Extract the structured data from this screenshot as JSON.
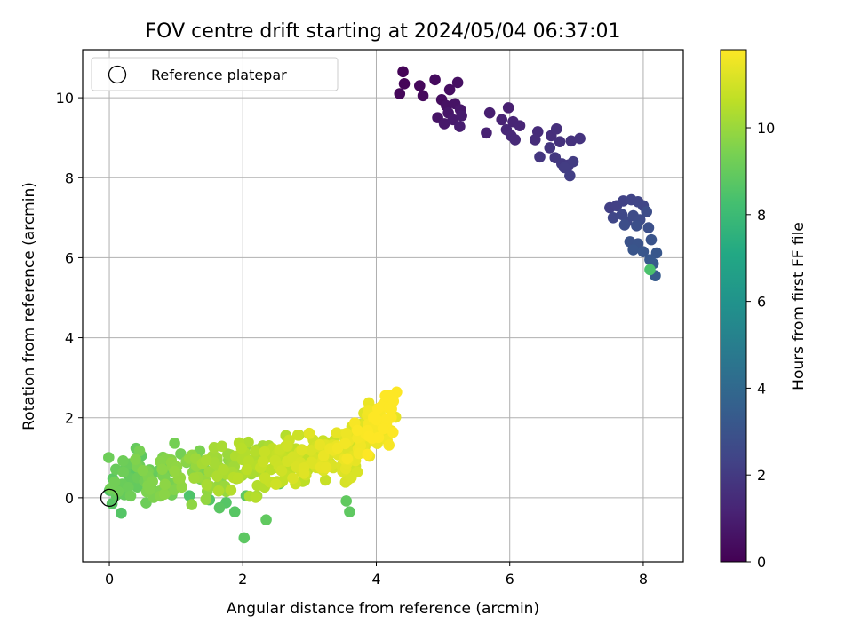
{
  "chart_data": {
    "type": "scatter",
    "title": "FOV centre drift starting at 2024/05/04 06:37:01",
    "xlabel": "Angular distance from reference (arcmin)",
    "ylabel": "Rotation from reference (arcmin)",
    "xlim": [
      -0.4,
      8.6
    ],
    "ylim": [
      -1.6,
      11.2
    ],
    "xticks": [
      0,
      2,
      4,
      6,
      8
    ],
    "yticks": [
      0,
      2,
      4,
      6,
      8,
      10
    ],
    "grid": true,
    "legend": {
      "placement": "top-left",
      "entries": [
        "Reference platepar"
      ]
    },
    "reference_point": {
      "x": 0,
      "y": 0
    },
    "colorbar": {
      "label": "Hours from first FF file",
      "range": [
        0,
        11.8
      ],
      "ticks": [
        0,
        2,
        4,
        6,
        8,
        10
      ],
      "colormap": "viridis"
    },
    "points": [
      {
        "x": 4.4,
        "y": 10.65,
        "c": 0.1
      },
      {
        "x": 4.42,
        "y": 10.35,
        "c": 0.15
      },
      {
        "x": 4.35,
        "y": 10.1,
        "c": 0.2
      },
      {
        "x": 4.65,
        "y": 10.3,
        "c": 0.25
      },
      {
        "x": 4.7,
        "y": 10.05,
        "c": 0.3
      },
      {
        "x": 4.88,
        "y": 10.45,
        "c": 0.35
      },
      {
        "x": 4.98,
        "y": 9.95,
        "c": 0.4
      },
      {
        "x": 5.1,
        "y": 10.2,
        "c": 0.45
      },
      {
        "x": 5.22,
        "y": 10.38,
        "c": 0.5
      },
      {
        "x": 5.05,
        "y": 9.8,
        "c": 0.55
      },
      {
        "x": 5.18,
        "y": 9.85,
        "c": 0.6
      },
      {
        "x": 4.92,
        "y": 9.5,
        "c": 0.65
      },
      {
        "x": 5.08,
        "y": 9.62,
        "c": 0.7
      },
      {
        "x": 5.26,
        "y": 9.7,
        "c": 0.75
      },
      {
        "x": 5.02,
        "y": 9.35,
        "c": 0.8
      },
      {
        "x": 5.15,
        "y": 9.45,
        "c": 0.85
      },
      {
        "x": 5.28,
        "y": 9.55,
        "c": 0.9
      },
      {
        "x": 5.25,
        "y": 9.28,
        "c": 0.95
      },
      {
        "x": 5.7,
        "y": 9.62,
        "c": 1.0
      },
      {
        "x": 5.98,
        "y": 9.75,
        "c": 1.05
      },
      {
        "x": 5.65,
        "y": 9.12,
        "c": 1.1
      },
      {
        "x": 5.88,
        "y": 9.45,
        "c": 1.15
      },
      {
        "x": 6.05,
        "y": 9.4,
        "c": 1.2
      },
      {
        "x": 6.15,
        "y": 9.3,
        "c": 1.25
      },
      {
        "x": 5.95,
        "y": 9.2,
        "c": 1.3
      },
      {
        "x": 6.02,
        "y": 9.05,
        "c": 1.35
      },
      {
        "x": 6.08,
        "y": 8.95,
        "c": 1.4
      },
      {
        "x": 6.42,
        "y": 9.15,
        "c": 1.45
      },
      {
        "x": 6.38,
        "y": 8.95,
        "c": 1.5
      },
      {
        "x": 6.62,
        "y": 9.05,
        "c": 1.55
      },
      {
        "x": 6.7,
        "y": 9.22,
        "c": 1.6
      },
      {
        "x": 6.75,
        "y": 8.9,
        "c": 1.65
      },
      {
        "x": 6.92,
        "y": 8.92,
        "c": 1.7
      },
      {
        "x": 7.05,
        "y": 8.98,
        "c": 1.75
      },
      {
        "x": 6.6,
        "y": 8.75,
        "c": 1.8
      },
      {
        "x": 6.45,
        "y": 8.52,
        "c": 1.85
      },
      {
        "x": 6.68,
        "y": 8.5,
        "c": 1.9
      },
      {
        "x": 6.78,
        "y": 8.35,
        "c": 1.95
      },
      {
        "x": 6.88,
        "y": 8.32,
        "c": 2.0
      },
      {
        "x": 6.95,
        "y": 8.4,
        "c": 2.05
      },
      {
        "x": 6.82,
        "y": 8.25,
        "c": 2.1
      },
      {
        "x": 6.9,
        "y": 8.05,
        "c": 2.15
      },
      {
        "x": 7.5,
        "y": 7.25,
        "c": 2.2
      },
      {
        "x": 7.6,
        "y": 7.3,
        "c": 2.25
      },
      {
        "x": 7.7,
        "y": 7.42,
        "c": 2.3
      },
      {
        "x": 7.82,
        "y": 7.45,
        "c": 2.35
      },
      {
        "x": 7.92,
        "y": 7.4,
        "c": 2.4
      },
      {
        "x": 8.0,
        "y": 7.3,
        "c": 2.45
      },
      {
        "x": 7.55,
        "y": 7.0,
        "c": 2.5
      },
      {
        "x": 7.68,
        "y": 7.08,
        "c": 2.55
      },
      {
        "x": 7.75,
        "y": 6.9,
        "c": 2.6
      },
      {
        "x": 7.85,
        "y": 7.05,
        "c": 2.65
      },
      {
        "x": 7.95,
        "y": 6.95,
        "c": 2.7
      },
      {
        "x": 8.05,
        "y": 7.15,
        "c": 2.75
      },
      {
        "x": 7.72,
        "y": 6.82,
        "c": 2.8
      },
      {
        "x": 7.9,
        "y": 6.8,
        "c": 2.85
      },
      {
        "x": 8.08,
        "y": 6.75,
        "c": 2.9
      },
      {
        "x": 7.8,
        "y": 6.4,
        "c": 2.95
      },
      {
        "x": 7.92,
        "y": 6.35,
        "c": 3.0
      },
      {
        "x": 8.12,
        "y": 6.45,
        "c": 3.05
      },
      {
        "x": 7.85,
        "y": 6.2,
        "c": 3.1
      },
      {
        "x": 8.0,
        "y": 6.15,
        "c": 3.15
      },
      {
        "x": 8.2,
        "y": 6.12,
        "c": 3.2
      },
      {
        "x": 8.1,
        "y": 5.95,
        "c": 3.25
      },
      {
        "x": 8.15,
        "y": 5.85,
        "c": 3.3
      },
      {
        "x": 8.18,
        "y": 5.55,
        "c": 3.35
      },
      {
        "x": 8.1,
        "y": 5.7,
        "c": 8.4
      },
      {
        "x": 2.02,
        "y": -1.0,
        "c": 8.8
      },
      {
        "x": 2.35,
        "y": -0.55,
        "c": 8.9
      },
      {
        "x": 1.88,
        "y": -0.35,
        "c": 8.7
      },
      {
        "x": 1.65,
        "y": -0.25,
        "c": 8.75
      },
      {
        "x": 2.05,
        "y": 0.05,
        "c": 8.8
      },
      {
        "x": 3.6,
        "y": -0.35,
        "c": 8.85
      },
      {
        "x": 3.55,
        "y": -0.08,
        "c": 8.9
      },
      {
        "x": 1.5,
        "y": -0.05,
        "c": 8.6
      },
      {
        "x": 1.75,
        "y": -0.12,
        "c": 8.65
      },
      {
        "x": 2.55,
        "y": 0.35,
        "c": 8.7
      },
      {
        "x": 1.2,
        "y": 0.05,
        "c": 8.5
      },
      {
        "x": 0.18,
        "y": 0.15,
        "c": 8.6
      }
    ],
    "cluster_low": {
      "x_range": [
        0.0,
        4.3
      ],
      "y_center_at_x0": 0.35,
      "y_slope": 0.22,
      "y_spread": 0.9,
      "c_range": [
        8.9,
        11.8
      ],
      "count": 420
    }
  }
}
